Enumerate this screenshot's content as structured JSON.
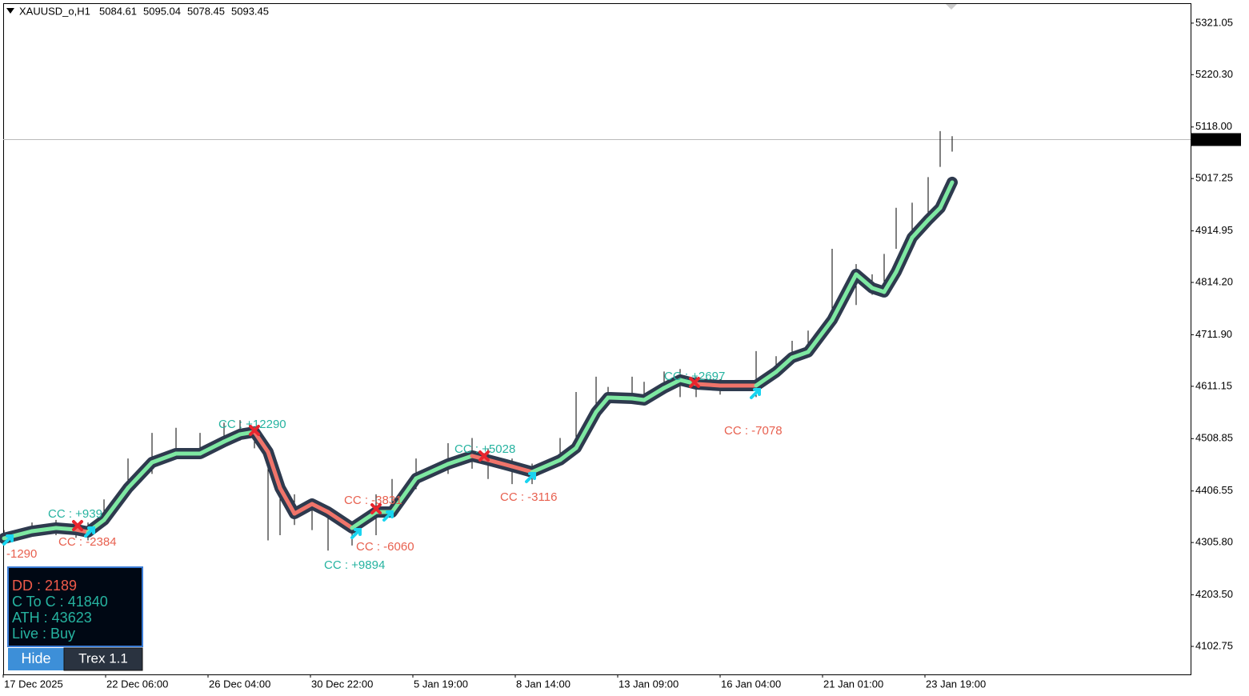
{
  "header": {
    "symbol": "XAUUSD_o,H1",
    "ohlc": [
      5084.61,
      5095.04,
      5078.45,
      5093.45
    ]
  },
  "chart": {
    "xlim": [
      4,
      1488
    ],
    "ylim": [
      4048,
      5360
    ],
    "yticks": [
      5321.05,
      {
        "value": 5220.3,
        "label": "5220.30"
      },
      {
        "value": 5118,
        "label": "5118.00"
      },
      5017.25,
      4914.95,
      {
        "value": 4814.2,
        "label": "4814.20"
      },
      {
        "value": 4711.9,
        "label": "4711.90"
      },
      4611.15,
      4508.85,
      4406.55,
      {
        "value": 4305.8,
        "label": "4305.80"
      },
      {
        "value": 4203.5,
        "label": "4203.50"
      },
      4102.75
    ],
    "xticks": [
      {
        "value": 4,
        "label": "17 Dec 2025"
      },
      {
        "value": 132,
        "label": "22 Dec 06:00"
      },
      {
        "value": 260,
        "label": "26 Dec 04:00"
      },
      {
        "value": 388,
        "label": "30 Dec 22:00"
      },
      {
        "value": 516,
        "label": "5 Jan 19:00"
      },
      {
        "value": 644,
        "label": "8 Jan 14:00"
      },
      {
        "value": 772,
        "label": "13 Jan 09:00"
      },
      {
        "value": 900,
        "label": "16 Jan 04:00"
      },
      {
        "value": 1028,
        "label": "21 Jan 01:00"
      },
      {
        "value": 1156,
        "label": "23 Jan 19:00"
      }
    ],
    "x": [
      5,
      40,
      70,
      95,
      110,
      130,
      160,
      190,
      220,
      250,
      280,
      300,
      318,
      335,
      350,
      368,
      390,
      410,
      440,
      470,
      490,
      520,
      560,
      590,
      610,
      640,
      665,
      700,
      720,
      745,
      760,
      790,
      805,
      830,
      850,
      870,
      900,
      945,
      970,
      990,
      1010,
      1040,
      1070,
      1090,
      1105,
      1120,
      1140,
      1160,
      1175,
      1190
    ],
    "high": [
      4330,
      4345,
      4350,
      4340,
      4345,
      4390,
      4470,
      4520,
      4530,
      4520,
      4540,
      4545,
      4530,
      4480,
      4420,
      4400,
      4390,
      4360,
      4345,
      4400,
      4430,
      4470,
      4500,
      4510,
      4490,
      4470,
      4460,
      4510,
      4600,
      4630,
      4610,
      4630,
      4620,
      4640,
      4645,
      4630,
      4625,
      4680,
      4670,
      4700,
      4720,
      4880,
      4850,
      4830,
      4870,
      4960,
      4970,
      5020,
      5110,
      5100
    ],
    "low": [
      4300,
      4318,
      4320,
      4315,
      4310,
      4340,
      4410,
      4440,
      4470,
      4480,
      4500,
      4505,
      4490,
      4310,
      4320,
      4340,
      4330,
      4290,
      4300,
      4320,
      4370,
      4410,
      4440,
      4450,
      4430,
      4420,
      4420,
      4460,
      4490,
      4560,
      4580,
      4590,
      4580,
      4600,
      4590,
      4590,
      4595,
      4590,
      4640,
      4660,
      4680,
      4760,
      4770,
      4790,
      4810,
      4880,
      4910,
      4940,
      5040,
      5070
    ],
    "trend": [
      4313.9,
      4327.9,
      4334.2,
      4331.0,
      4326.3,
      4349.8,
      4412.4,
      4462.4,
      4479.6,
      4479.6,
      4503.1,
      4517.2,
      4521.9,
      4482.8,
      4412.4,
      4362.3,
      4381.1,
      4365.4,
      4334.2,
      4365.4,
      4365.4,
      4431.1,
      4459.3,
      4475.0,
      4467.1,
      4454.6,
      4443.6,
      4467.1,
      4490.6,
      4561.0,
      4589.1,
      4587.5,
      4584.4,
      4607.9,
      4623.5,
      4615.7,
      4612.6,
      4612.6,
      4639.2,
      4667.3,
      4678.3,
      4740.8,
      4830.0,
      4803.4,
      4795.6,
      4834.7,
      4901.9,
      4936.3,
      4959.8,
      5009.8
    ],
    "trend_colors": [
      "#7ee8a2",
      "#7ee8a2",
      "#7ee8a2",
      "#f0746a",
      "#7ee8a2",
      "#7ee8a2",
      "#7ee8a2",
      "#7ee8a2",
      "#7ee8a2",
      "#7ee8a2",
      "#7ee8a2",
      "#7ee8a2",
      "#f0746a",
      "#f0746a",
      "#f0746a",
      "#f0746a",
      "#f0746a",
      "#f0746a",
      "#7ee8a2",
      "#7ee8a2",
      "#7ee8a2",
      "#7ee8a2",
      "#7ee8a2",
      "#f0746a",
      "#f0746a",
      "#f0746a",
      "#7ee8a2",
      "#7ee8a2",
      "#7ee8a2",
      "#7ee8a2",
      "#7ee8a2",
      "#7ee8a2",
      "#7ee8a2",
      "#7ee8a2",
      "#7ee8a2",
      "#f0746a",
      "#f0746a",
      "#7ee8a2",
      "#7ee8a2",
      "#7ee8a2",
      "#7ee8a2",
      "#7ee8a2",
      "#7ee8a2",
      "#7ee8a2",
      "#7ee8a2",
      "#7ee8a2",
      "#7ee8a2",
      "#7ee8a2",
      "#7ee8a2"
    ],
    "signals": [
      {
        "x": 10,
        "price": 4310.7,
        "color": "#19d4f0"
      },
      {
        "x": 97,
        "price": 4338.8,
        "color": "#e8262e"
      },
      {
        "x": 112,
        "price": 4326.3,
        "color": "#19d4f0"
      },
      {
        "x": 318,
        "price": 4525.0,
        "color": "#e8262e"
      },
      {
        "x": 445,
        "price": 4323.2,
        "color": "#19d4f0"
      },
      {
        "x": 470,
        "price": 4371.7,
        "color": "#e8262e"
      },
      {
        "x": 485,
        "price": 4357.6,
        "color": "#19d4f0"
      },
      {
        "x": 605,
        "price": 4474.9,
        "color": "#e8262e"
      },
      {
        "x": 663,
        "price": 4432.7,
        "color": "#19d4f0"
      },
      {
        "x": 868,
        "price": 4618.8,
        "color": "#e8262e"
      },
      {
        "x": 944,
        "price": 4596.9,
        "color": "#19d4f0"
      }
    ],
    "annotations": [
      {
        "text": "-1290",
        "x": 8,
        "price": 4282.6,
        "color": "#e8604f"
      },
      {
        "text": "CC : +939",
        "x": 60,
        "price": 4360.8,
        "color": "#26b3a0"
      },
      {
        "text": "CC : -2384",
        "x": 73,
        "price": 4306.0,
        "color": "#e8604f"
      },
      {
        "text": "CC : +12290",
        "x": 273,
        "price": 4536.0,
        "color": "#26b3a0"
      },
      {
        "text": "CC : -3831",
        "x": 430,
        "price": 4387.4,
        "color": "#e8604f"
      },
      {
        "text": "CC : -6060",
        "x": 445,
        "price": 4296.6,
        "color": "#e8604f"
      },
      {
        "text": "CC : +9894",
        "x": 405,
        "price": 4260.6,
        "color": "#26b3a0"
      },
      {
        "text": "CC : +5028",
        "x": 568,
        "price": 4487.4,
        "color": "#26b3a0"
      },
      {
        "text": "CC : -3116",
        "x": 625,
        "price": 4393.6,
        "color": "#e8604f"
      },
      {
        "text": "CC : +2697",
        "x": 830,
        "price": 4629.8,
        "color": "#26b3a0"
      },
      {
        "text": "CC : -7078",
        "x": 905,
        "price": 4523.4,
        "color": "#e8604f"
      }
    ]
  },
  "panel": {
    "lines": [
      {
        "text": "DD : 2189",
        "color": "#f05a4a"
      },
      {
        "text": "C To C : 41840",
        "color": "#26b3a0"
      },
      {
        "text": "ATH : 43623",
        "color": "#26b3a0"
      },
      {
        "text": "Live : Buy",
        "color": "#26b3a0"
      }
    ]
  },
  "buttons": {
    "hide": "Hide",
    "version": "Trex 1.1"
  }
}
